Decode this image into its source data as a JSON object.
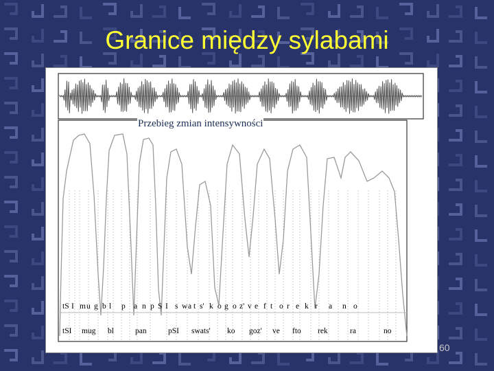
{
  "slide": {
    "title": "Granice między sylabami",
    "slide_number": "60"
  },
  "figure": {
    "intensity_label": "Przebieg zmian intensywności",
    "segments": [
      "tS",
      "I",
      "m",
      "u",
      "g",
      "b",
      "l",
      "p",
      "a",
      "n",
      "p",
      "S",
      "I",
      "s",
      "w",
      "a",
      "t",
      "s'",
      "k",
      "o",
      "g",
      "o",
      "z'",
      "v",
      "e",
      "f",
      "t",
      "o",
      "r",
      "e",
      "k",
      "r",
      "a",
      "n",
      "o"
    ],
    "syllables": [
      "tSI",
      "mug",
      "bl",
      "pan",
      "pSI",
      "swats'",
      "ko",
      "goz'",
      "ve",
      "fto",
      "rek",
      "ra",
      "no"
    ]
  }
}
